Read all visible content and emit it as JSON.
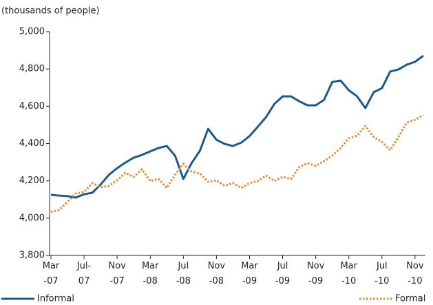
{
  "chart_data": {
    "type": "line",
    "y_label": "(thousands of people)",
    "categories": [
      "Mar -07",
      null,
      null,
      null,
      "Jul- 07",
      null,
      null,
      null,
      "Nov -07",
      null,
      null,
      null,
      "Mar -08",
      null,
      null,
      null,
      "Jul -08",
      null,
      null,
      null,
      "Nov -08",
      null,
      null,
      null,
      "Mar -09",
      null,
      null,
      null,
      "Jul -09",
      null,
      null,
      null,
      "Nov -09",
      null,
      null,
      null,
      "Mar -10",
      null,
      null,
      null,
      "Jul -10",
      null,
      null,
      null,
      "Nov -10",
      null
    ],
    "series": [
      {
        "name": "Informal",
        "color": "#1d5a87",
        "dash": false,
        "values": [
          4125,
          4121,
          4118,
          4110,
          4128,
          4136,
          4180,
          4232,
          4268,
          4298,
          4324,
          4339,
          4358,
          4376,
          4387,
          4335,
          4210,
          4295,
          4361,
          4479,
          4420,
          4398,
          4387,
          4405,
          4440,
          4490,
          4542,
          4612,
          4653,
          4653,
          4627,
          4605,
          4605,
          4634,
          4730,
          4738,
          4686,
          4653,
          4590,
          4675,
          4697,
          4786,
          4797,
          4823,
          4838,
          4871
        ]
      },
      {
        "name": "Formal",
        "color": "#e8873a",
        "dash": true,
        "values": [
          4033,
          4044,
          4088,
          4132,
          4140,
          4188,
          4166,
          4173,
          4203,
          4243,
          4221,
          4262,
          4199,
          4210,
          4162,
          4232,
          4291,
          4250,
          4239,
          4195,
          4203,
          4173,
          4188,
          4162,
          4188,
          4199,
          4228,
          4199,
          4221,
          4210,
          4273,
          4295,
          4280,
          4306,
          4335,
          4376,
          4428,
          4442,
          4494,
          4435,
          4409,
          4365,
          4435,
          4513,
          4527,
          4553
        ]
      }
    ],
    "ylim": [
      3800,
      5000
    ],
    "yticks": [
      {
        "value": 3800,
        "label": "3,800"
      },
      {
        "value": 4000,
        "label": "4,000"
      },
      {
        "value": 4200,
        "label": "4,200"
      },
      {
        "value": 4400,
        "label": "4,400"
      },
      {
        "value": 4600,
        "label": "4,600"
      },
      {
        "value": 4800,
        "label": "4,800"
      },
      {
        "value": 5000,
        "label": "5,000"
      }
    ],
    "legend": "bottom"
  }
}
